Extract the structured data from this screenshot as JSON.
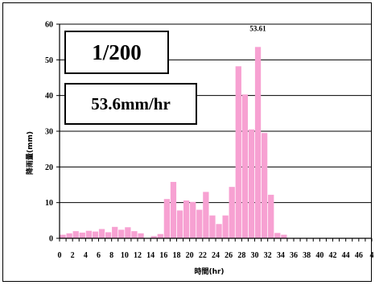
{
  "overlay": {
    "return_period": "1/200",
    "intensity": "53.6mm/hr"
  },
  "chart_data": {
    "type": "bar",
    "title": "",
    "xlabel": "時間(hr)",
    "ylabel": "降雨量(mm)",
    "ylim": [
      0,
      60
    ],
    "yticks": [
      0,
      10,
      20,
      30,
      40,
      50,
      60
    ],
    "xlim": [
      0,
      48
    ],
    "xtick_labels": [
      "0",
      "2",
      "4",
      "6",
      "8",
      "10",
      "12",
      "14",
      "16",
      "18",
      "20",
      "22",
      "24",
      "26",
      "28",
      "30",
      "32",
      "34",
      "36",
      "38",
      "40",
      "42",
      "44",
      "46",
      "4"
    ],
    "grid": "horizontal",
    "legend": "none",
    "bar_color": "#f7a1d2",
    "hours": [
      1,
      2,
      3,
      4,
      5,
      6,
      7,
      8,
      9,
      10,
      11,
      12,
      13,
      14,
      15,
      16,
      17,
      18,
      19,
      20,
      21,
      22,
      23,
      24,
      25,
      26,
      27,
      28,
      29,
      30,
      31,
      32,
      33,
      34,
      35,
      36,
      37,
      38,
      39,
      40,
      41,
      42,
      43,
      44,
      45,
      46,
      47,
      48
    ],
    "values": [
      1.0,
      1.4,
      2.0,
      1.6,
      2.1,
      1.9,
      2.6,
      1.7,
      3.2,
      2.4,
      3.1,
      2.0,
      1.4,
      0,
      0.6,
      1.2,
      11.0,
      15.8,
      7.8,
      10.6,
      10.2,
      8.0,
      13.0,
      6.4,
      4.0,
      6.4,
      14.4,
      48.2,
      40.3,
      30.5,
      53.61,
      29.5,
      12.2,
      1.5,
      1.0,
      0,
      0,
      0,
      0,
      0,
      0,
      0,
      0,
      0,
      0,
      0,
      0,
      0
    ],
    "annotations": [
      {
        "x": 31,
        "text": "53.61"
      }
    ]
  }
}
